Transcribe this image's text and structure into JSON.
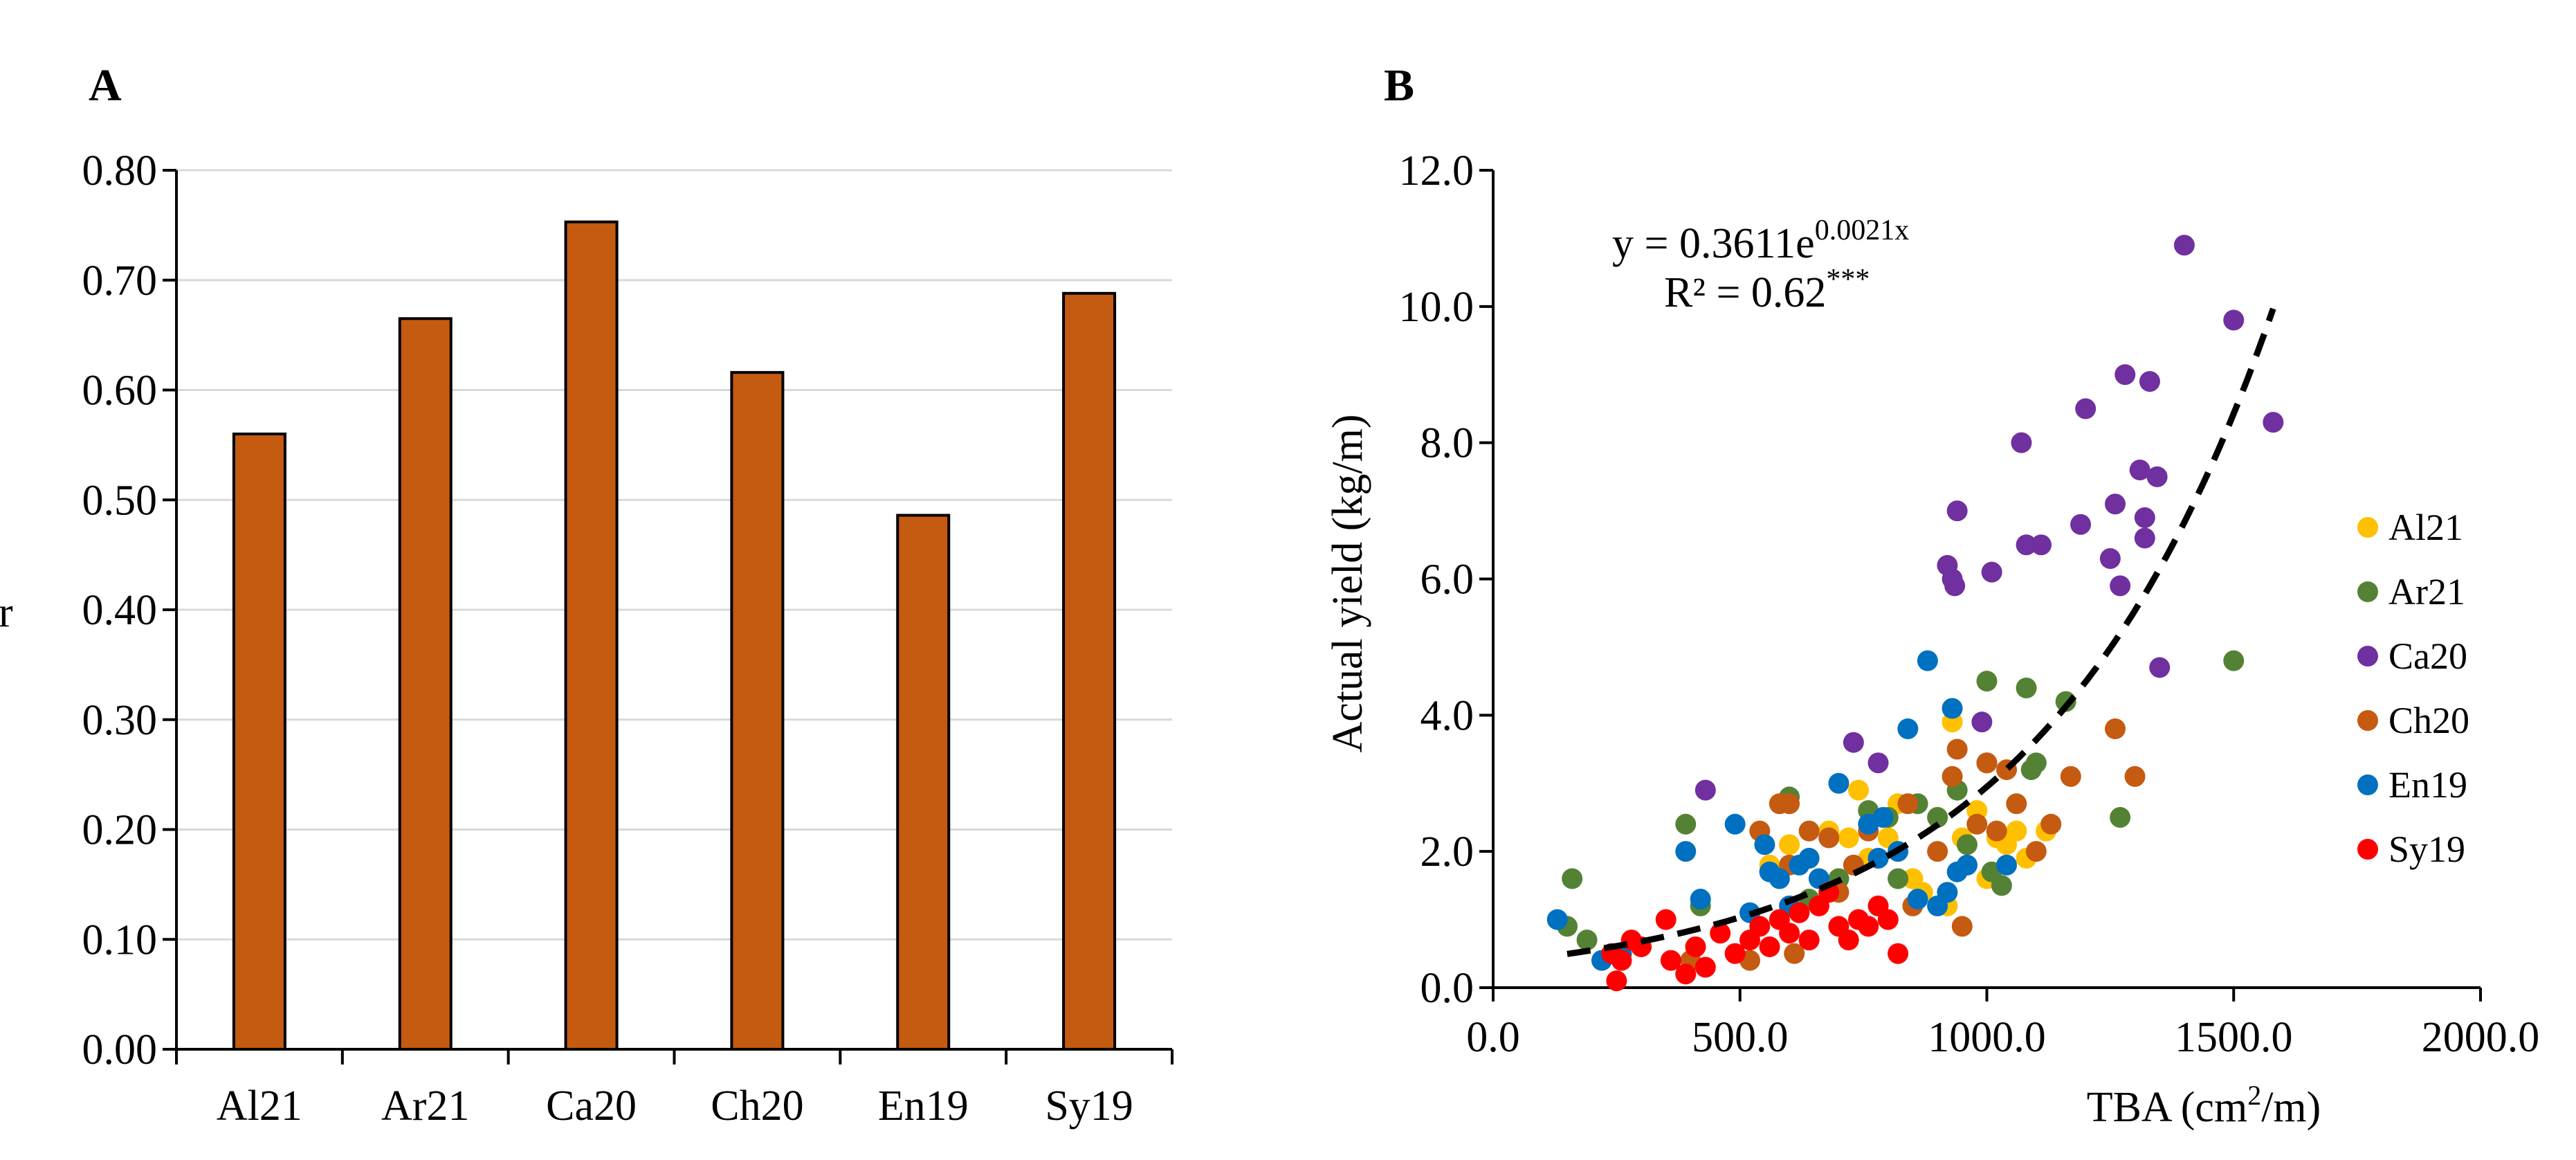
{
  "colors": {
    "bar_fill": "#c55a11",
    "bar_stroke": "#000000",
    "trend_line": "#000000",
    "grid": "#d9d9d9",
    "Al21": "#ffc000",
    "Ar21": "#548235",
    "Ca20": "#7030a0",
    "Ch20": "#c55a11",
    "En19": "#0070c0",
    "Sy19": "#ff0000"
  },
  "chart_data": [
    {
      "panel": "A",
      "type": "bar",
      "categories": [
        "Al21",
        "Ar21",
        "Ca20",
        "Ch20",
        "En19",
        "Sy19"
      ],
      "values": [
        0.56,
        0.665,
        0.753,
        0.616,
        0.486,
        0.688
      ],
      "ylim": [
        0,
        0.8
      ],
      "yticks": [
        "0.00",
        "0.10",
        "0.20",
        "0.30",
        "0.40",
        "0.50",
        "0.60",
        "0.70",
        "0.80"
      ],
      "ylabel_partial": "r",
      "grid": true
    },
    {
      "panel": "B",
      "type": "scatter",
      "xlabel": "TBA (cm",
      "xlabel_sup": "2",
      "xlabel_end": "/m)",
      "ylabel": "Actual yield (kg/m)",
      "xlim": [
        0,
        2000
      ],
      "ylim": [
        0,
        12
      ],
      "xticks": [
        "0.0",
        "500.0",
        "1000.0",
        "1500.0",
        "2000.0"
      ],
      "yticks": [
        "0.0",
        "2.0",
        "4.0",
        "6.0",
        "8.0",
        "10.0",
        "12.0"
      ],
      "equation": {
        "prefix": "y = 0.3611e",
        "exponent": "0.0021x"
      },
      "r2": {
        "text": "R² = 0.62",
        "stars": "***"
      },
      "trendline": {
        "a": 0.3611,
        "b": 0.0021,
        "x_start": 150,
        "x_end": 1580,
        "style": "dashed"
      },
      "legend": [
        "Al21",
        "Ar21",
        "Ca20",
        "Ch20",
        "En19",
        "Sy19"
      ],
      "series": [
        {
          "name": "Al21",
          "points": [
            [
              560,
              1.8
            ],
            [
              600,
              2.1
            ],
            [
              640,
              1.9
            ],
            [
              680,
              2.3
            ],
            [
              700,
              1.6
            ],
            [
              740,
              2.9
            ],
            [
              760,
              1.9
            ],
            [
              800,
              2.2
            ],
            [
              820,
              2.7
            ],
            [
              850,
              1.6
            ],
            [
              870,
              1.4
            ],
            [
              900,
              2.5
            ],
            [
              920,
              1.2
            ],
            [
              930,
              3.9
            ],
            [
              950,
              2.2
            ],
            [
              960,
              1.8
            ],
            [
              980,
              2.6
            ],
            [
              1000,
              1.6
            ],
            [
              1020,
              2.2
            ],
            [
              1040,
              2.1
            ],
            [
              1060,
              2.3
            ],
            [
              1080,
              1.9
            ],
            [
              1120,
              2.3
            ],
            [
              720,
              2.2
            ],
            [
              780,
              1.9
            ]
          ]
        },
        {
          "name": "Ar21",
          "points": [
            [
              150,
              0.9
            ],
            [
              160,
              1.6
            ],
            [
              190,
              0.7
            ],
            [
              390,
              2.4
            ],
            [
              420,
              1.2
            ],
            [
              600,
              2.8
            ],
            [
              640,
              1.3
            ],
            [
              700,
              1.6
            ],
            [
              760,
              2.6
            ],
            [
              800,
              2.5
            ],
            [
              820,
              1.6
            ],
            [
              860,
              2.7
            ],
            [
              900,
              2.5
            ],
            [
              940,
              2.9
            ],
            [
              960,
              2.1
            ],
            [
              1000,
              4.5
            ],
            [
              1010,
              1.7
            ],
            [
              1030,
              1.5
            ],
            [
              1080,
              4.4
            ],
            [
              1090,
              3.2
            ],
            [
              1100,
              3.3
            ],
            [
              1160,
              4.2
            ],
            [
              1270,
              2.5
            ],
            [
              1500,
              4.8
            ]
          ]
        },
        {
          "name": "Ca20",
          "points": [
            [
              430,
              2.9
            ],
            [
              730,
              3.6
            ],
            [
              780,
              3.3
            ],
            [
              920,
              6.2
            ],
            [
              930,
              6.0
            ],
            [
              935,
              5.9
            ],
            [
              940,
              7.0
            ],
            [
              990,
              3.9
            ],
            [
              1000,
              3.3
            ],
            [
              1010,
              6.1
            ],
            [
              1070,
              8.0
            ],
            [
              1080,
              6.5
            ],
            [
              1110,
              6.5
            ],
            [
              1190,
              6.8
            ],
            [
              1200,
              8.5
            ],
            [
              1250,
              6.3
            ],
            [
              1260,
              7.1
            ],
            [
              1270,
              5.9
            ],
            [
              1280,
              9.0
            ],
            [
              1310,
              7.6
            ],
            [
              1320,
              6.9
            ],
            [
              1320,
              6.6
            ],
            [
              1330,
              8.9
            ],
            [
              1345,
              7.5
            ],
            [
              1350,
              4.7
            ],
            [
              1400,
              10.9
            ],
            [
              1500,
              9.8
            ],
            [
              1580,
              8.3
            ]
          ]
        },
        {
          "name": "Ch20",
          "points": [
            [
              400,
              0.4
            ],
            [
              520,
              0.4
            ],
            [
              540,
              2.3
            ],
            [
              580,
              2.7
            ],
            [
              600,
              2.7
            ],
            [
              600,
              1.8
            ],
            [
              610,
              0.5
            ],
            [
              640,
              2.3
            ],
            [
              680,
              2.2
            ],
            [
              700,
              1.4
            ],
            [
              730,
              1.8
            ],
            [
              760,
              2.3
            ],
            [
              840,
              2.7
            ],
            [
              850,
              1.2
            ],
            [
              900,
              2.0
            ],
            [
              930,
              3.1
            ],
            [
              940,
              3.5
            ],
            [
              950,
              0.9
            ],
            [
              980,
              2.4
            ],
            [
              1000,
              3.3
            ],
            [
              1020,
              2.3
            ],
            [
              1040,
              3.2
            ],
            [
              1060,
              2.7
            ],
            [
              1100,
              2.0
            ],
            [
              1130,
              2.4
            ],
            [
              1170,
              3.1
            ],
            [
              1260,
              3.8
            ],
            [
              1300,
              3.1
            ]
          ]
        },
        {
          "name": "En19",
          "points": [
            [
              130,
              1.0
            ],
            [
              220,
              0.4
            ],
            [
              260,
              0.5
            ],
            [
              390,
              2.0
            ],
            [
              420,
              1.3
            ],
            [
              490,
              2.4
            ],
            [
              520,
              1.1
            ],
            [
              550,
              2.1
            ],
            [
              560,
              1.7
            ],
            [
              580,
              1.6
            ],
            [
              600,
              1.2
            ],
            [
              620,
              1.8
            ],
            [
              640,
              1.9
            ],
            [
              660,
              1.6
            ],
            [
              700,
              3.0
            ],
            [
              760,
              2.4
            ],
            [
              780,
              1.9
            ],
            [
              790,
              2.5
            ],
            [
              820,
              2.0
            ],
            [
              840,
              3.8
            ],
            [
              860,
              1.3
            ],
            [
              880,
              4.8
            ],
            [
              900,
              1.2
            ],
            [
              920,
              1.4
            ],
            [
              930,
              4.1
            ],
            [
              940,
              1.7
            ],
            [
              960,
              1.8
            ],
            [
              1040,
              1.8
            ]
          ]
        },
        {
          "name": "Sy19",
          "points": [
            [
              240,
              0.5
            ],
            [
              250,
              0.1
            ],
            [
              260,
              0.4
            ],
            [
              280,
              0.7
            ],
            [
              300,
              0.6
            ],
            [
              350,
              1.0
            ],
            [
              360,
              0.4
            ],
            [
              390,
              0.2
            ],
            [
              410,
              0.6
            ],
            [
              430,
              0.3
            ],
            [
              460,
              0.8
            ],
            [
              490,
              0.5
            ],
            [
              520,
              0.7
            ],
            [
              540,
              0.9
            ],
            [
              560,
              0.6
            ],
            [
              580,
              1.0
            ],
            [
              600,
              0.8
            ],
            [
              620,
              1.1
            ],
            [
              640,
              0.7
            ],
            [
              660,
              1.2
            ],
            [
              680,
              1.4
            ],
            [
              700,
              0.9
            ],
            [
              720,
              0.7
            ],
            [
              740,
              1.0
            ],
            [
              760,
              0.9
            ],
            [
              780,
              1.2
            ],
            [
              800,
              1.0
            ],
            [
              820,
              0.5
            ]
          ]
        }
      ]
    }
  ]
}
